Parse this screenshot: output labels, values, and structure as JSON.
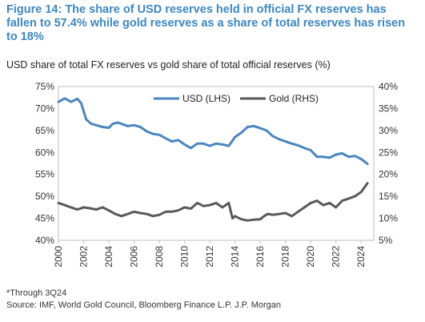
{
  "chart_data": {
    "type": "line",
    "title": "Figure 14: The share of USD reserves held in official FX reserves has fallen to 57.4% while gold reserves as a share of total reserves has risen to 18%",
    "subtitle": "USD share of total FX reserves vs gold share of total official reserves (%)",
    "x_ticks": [
      "2000",
      "2002",
      "2004",
      "2006",
      "2008",
      "2010",
      "2012",
      "2014",
      "2016",
      "2018",
      "2020",
      "2022",
      "2024"
    ],
    "left_ticks": [
      "75%",
      "70%",
      "65%",
      "60%",
      "55%",
      "50%",
      "45%",
      "40%"
    ],
    "right_ticks": [
      "40%",
      "35%",
      "30%",
      "25%",
      "20%",
      "15%",
      "10%",
      "5%"
    ],
    "left_range": [
      40,
      75
    ],
    "right_range": [
      5,
      40
    ],
    "x_range": [
      2000,
      2025
    ],
    "legend_position": "top",
    "series": [
      {
        "name": "USD (LHS)",
        "axis": "left",
        "color": "#4a86c0",
        "x": [
          2000,
          2000.5,
          2001,
          2001.5,
          2001.8,
          2002.2,
          2002.6,
          2003,
          2003.5,
          2004,
          2004.3,
          2004.7,
          2005,
          2005.5,
          2006,
          2006.5,
          2007,
          2007.5,
          2008,
          2008.5,
          2009,
          2009.5,
          2010,
          2010.5,
          2011,
          2011.5,
          2012,
          2012.5,
          2013,
          2013.5,
          2014,
          2014.5,
          2015,
          2015.5,
          2016,
          2016.5,
          2017,
          2017.5,
          2018,
          2018.5,
          2019,
          2019.5,
          2020,
          2020.5,
          2021,
          2021.5,
          2022,
          2022.5,
          2023,
          2023.5,
          2024,
          2024.5
        ],
        "values": [
          71.5,
          72.3,
          71.5,
          72.2,
          71.2,
          67.5,
          66.5,
          66.2,
          65.8,
          65.6,
          66.5,
          66.8,
          66.5,
          66.0,
          66.2,
          65.8,
          64.8,
          64.2,
          64.0,
          63.2,
          62.5,
          62.8,
          61.8,
          61.0,
          62.0,
          62.0,
          61.5,
          62.0,
          61.8,
          61.5,
          63.5,
          64.5,
          65.8,
          66.0,
          65.5,
          65.0,
          63.7,
          63.0,
          62.5,
          62.0,
          61.6,
          61.0,
          60.5,
          59.0,
          59.0,
          58.8,
          59.5,
          59.8,
          59.0,
          59.2,
          58.5,
          57.4
        ]
      },
      {
        "name": "Gold (RHS)",
        "axis": "right",
        "color": "#595959",
        "x": [
          2000,
          2000.5,
          2001,
          2001.5,
          2002,
          2002.5,
          2003,
          2003.5,
          2004,
          2004.5,
          2005,
          2005.5,
          2006,
          2006.5,
          2007,
          2007.5,
          2008,
          2008.5,
          2009,
          2009.5,
          2010,
          2010.5,
          2011,
          2011.5,
          2012,
          2012.5,
          2013,
          2013.5,
          2013.8,
          2014,
          2014.5,
          2015,
          2015.5,
          2016,
          2016.3,
          2016.6,
          2017,
          2017.5,
          2018,
          2018.5,
          2019,
          2019.5,
          2020,
          2020.5,
          2021,
          2021.5,
          2022,
          2022.5,
          2023,
          2023.5,
          2024,
          2024.5
        ],
        "values": [
          13.5,
          13.0,
          12.5,
          12.0,
          12.5,
          12.3,
          12.0,
          12.5,
          11.8,
          11.0,
          10.5,
          11.0,
          11.5,
          11.2,
          11.0,
          10.5,
          10.8,
          11.5,
          11.5,
          11.8,
          12.5,
          12.2,
          13.5,
          12.8,
          13.0,
          13.5,
          12.5,
          13.5,
          10.0,
          10.5,
          9.8,
          9.5,
          9.7,
          9.8,
          10.5,
          11.0,
          10.8,
          11.0,
          11.2,
          10.5,
          11.5,
          12.5,
          13.5,
          14.0,
          13.0,
          13.5,
          12.5,
          14.0,
          14.5,
          15.0,
          16.0,
          18.0
        ]
      }
    ],
    "xlabel": "",
    "ylabel": ""
  },
  "footnote": "*Through 3Q24",
  "source": "Source: IMF, World Gold Council, Bloomberg Finance L.P. J.P. Morgan"
}
